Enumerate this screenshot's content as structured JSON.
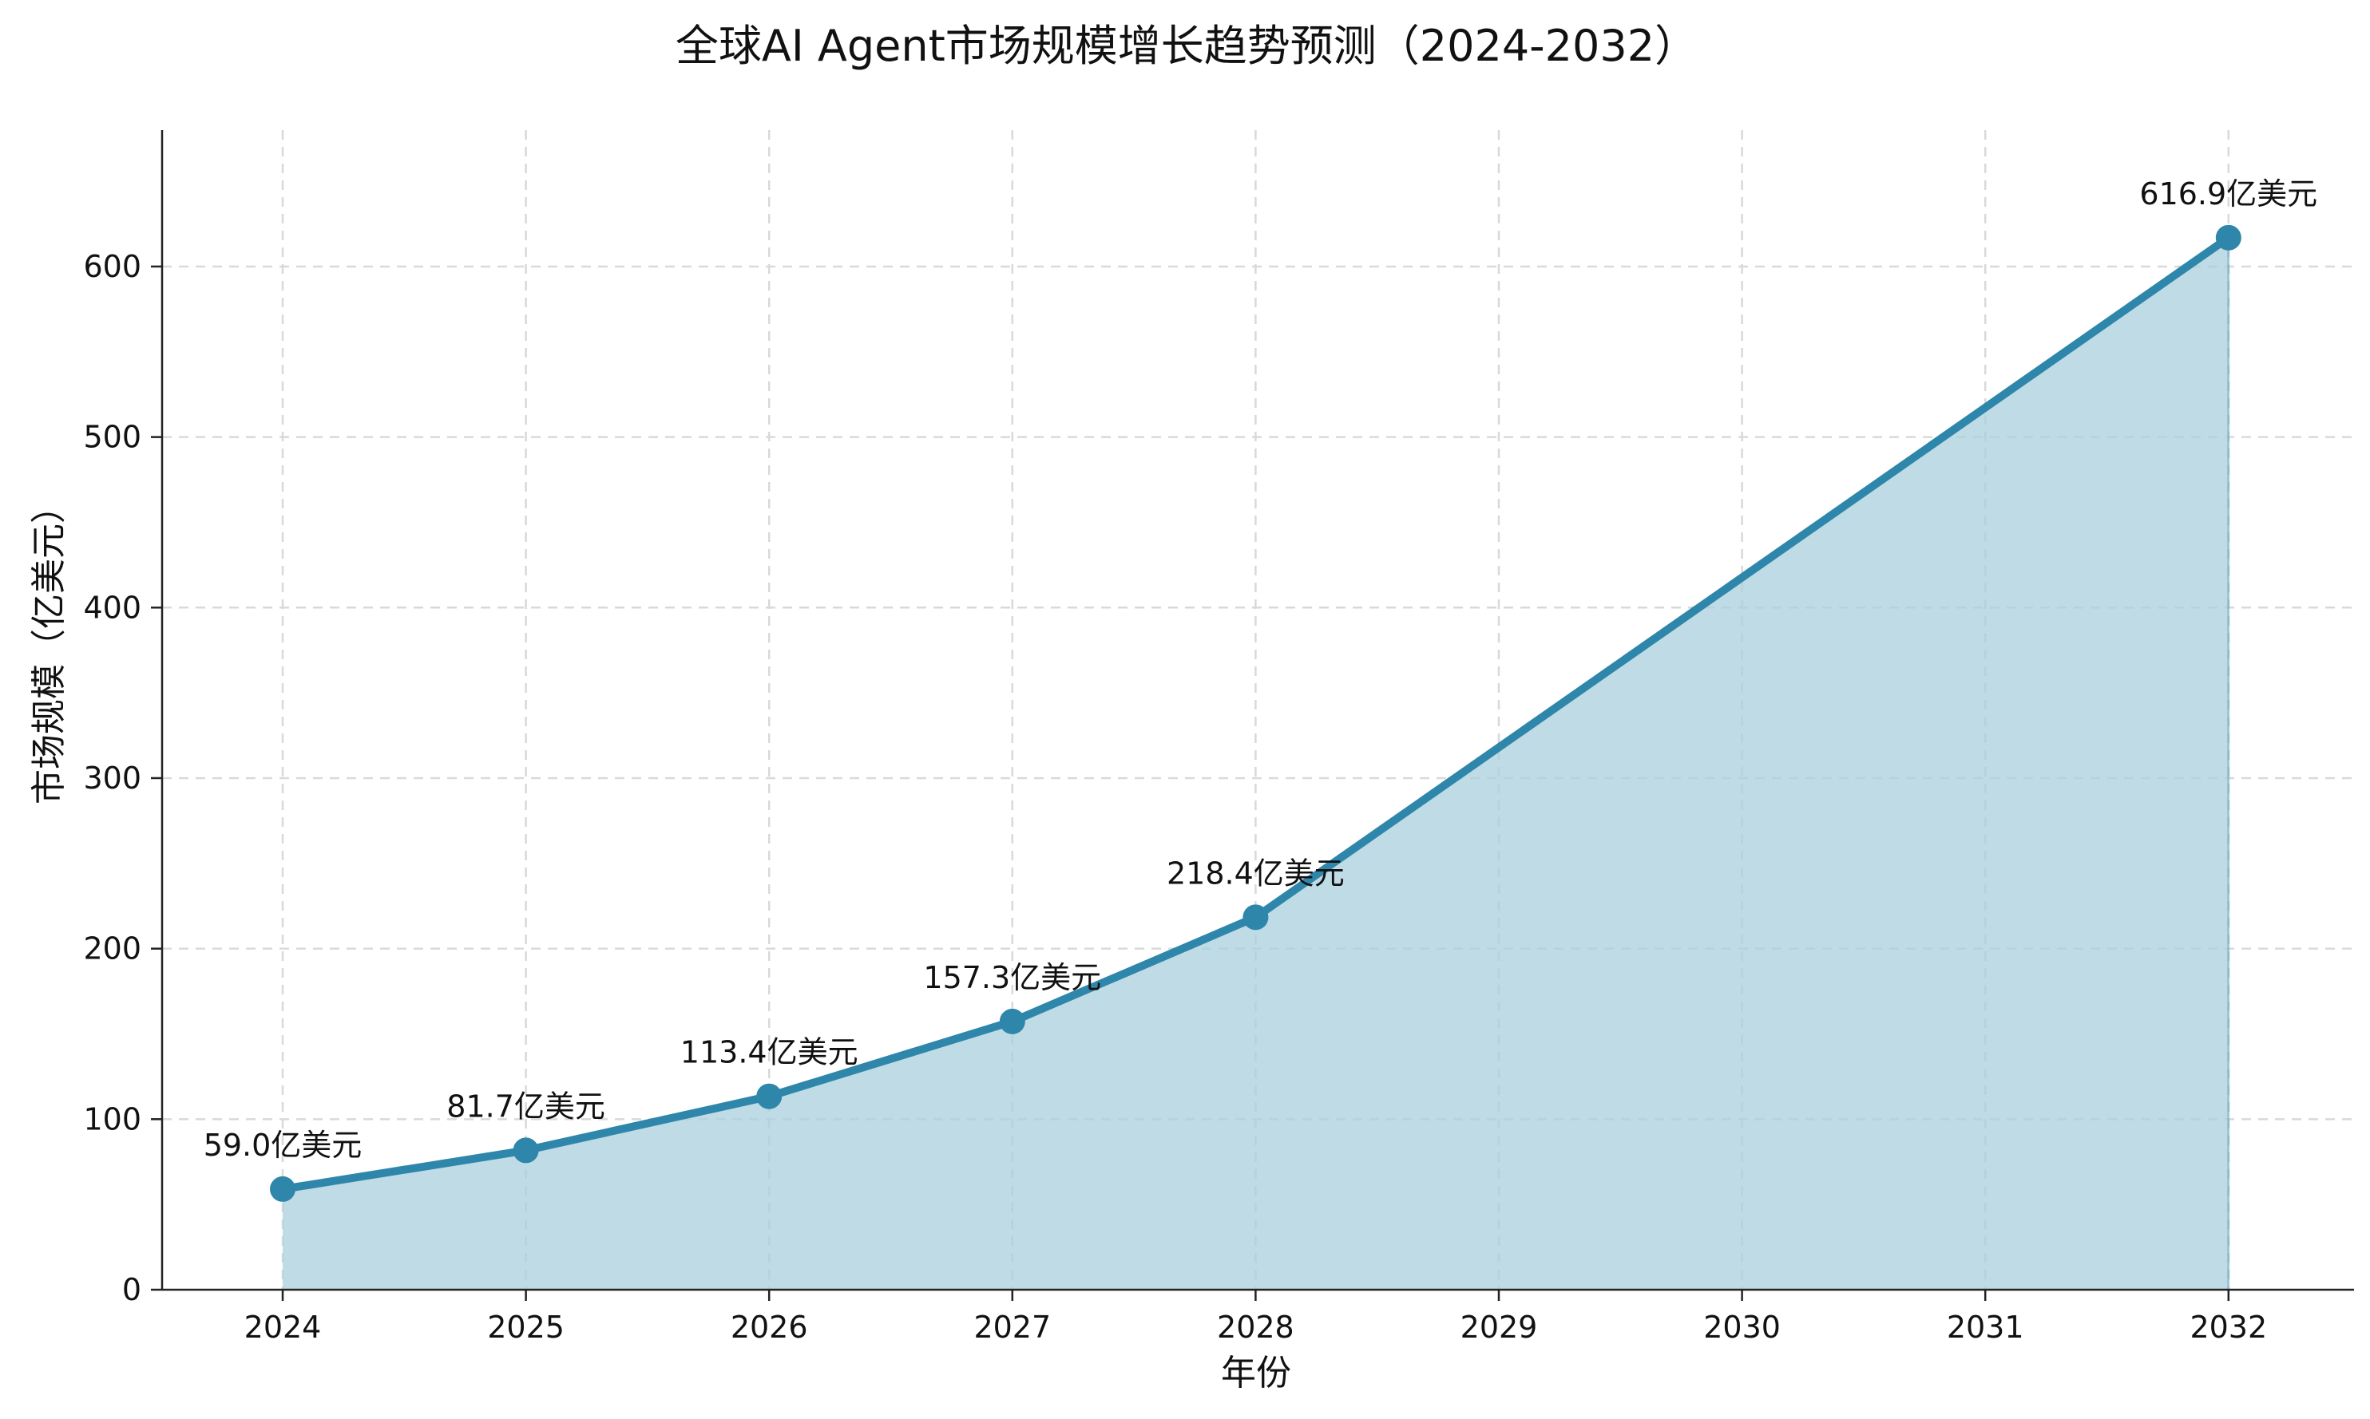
{
  "chart_data": {
    "type": "area",
    "title": "全球AI Agent市场规模增长趋势预测（2024-2032）",
    "xlabel": "年份",
    "ylabel": "市场规模（亿美元）",
    "x": [
      "2024",
      "2025",
      "2026",
      "2027",
      "2028",
      "2029",
      "2030",
      "2031",
      "2032"
    ],
    "series": [
      {
        "x": [
          "2024",
          "2025",
          "2026",
          "2027",
          "2028",
          "2032"
        ],
        "values": [
          59.0,
          81.7,
          113.4,
          157.3,
          218.4,
          616.9
        ],
        "labels": [
          "59.0亿美元",
          "81.7亿美元",
          "113.4亿美元",
          "157.3亿美元",
          "218.4亿美元",
          "616.9亿美元"
        ]
      }
    ],
    "ylim": [
      0,
      680
    ],
    "yticks": [
      "0",
      "100",
      "200",
      "300",
      "400",
      "500",
      "600"
    ],
    "grid": true,
    "colors": {
      "line": "#2e86ab",
      "fill": "#a9cfdc"
    }
  }
}
